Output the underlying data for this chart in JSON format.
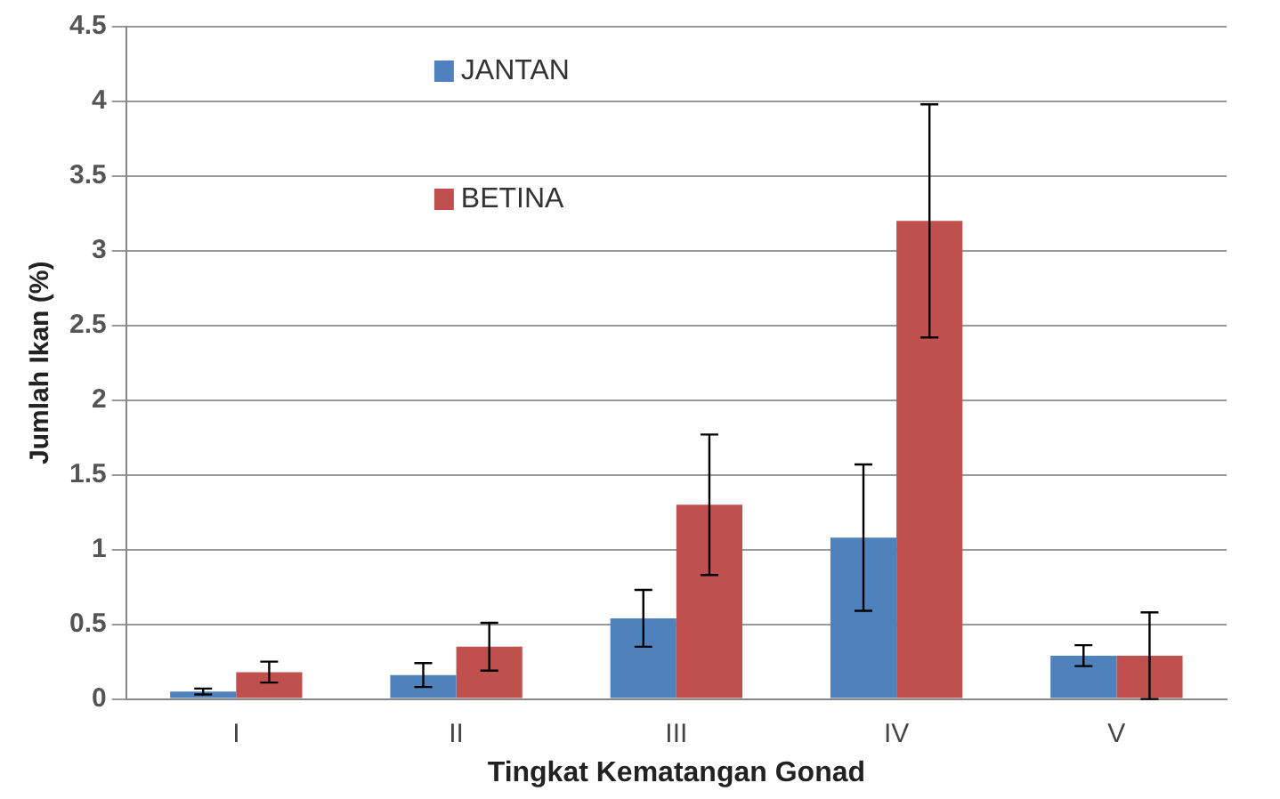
{
  "chart_data": {
    "type": "bar",
    "xlabel": "Tingkat Kematangan Gonad",
    "ylabel": "Jumlah Ikan (%)",
    "categories": [
      "I",
      "II",
      "III",
      "IV",
      "V"
    ],
    "series": [
      {
        "name": "JANTAN",
        "color": "#4f81bd",
        "values": [
          0.05,
          0.16,
          0.54,
          1.08,
          0.29
        ],
        "errors": [
          0.02,
          0.08,
          0.19,
          0.49,
          0.07
        ]
      },
      {
        "name": "BETINA",
        "color": "#c0504d",
        "values": [
          0.18,
          0.35,
          1.3,
          3.2,
          0.29
        ],
        "errors": [
          0.07,
          0.16,
          0.47,
          0.78,
          0.29
        ]
      }
    ],
    "ylim": [
      0,
      4.5
    ],
    "yticks": [
      0,
      0.5,
      1,
      1.5,
      2,
      2.5,
      3,
      3.5,
      4,
      4.5
    ],
    "grid": "y",
    "legend": "top left"
  }
}
